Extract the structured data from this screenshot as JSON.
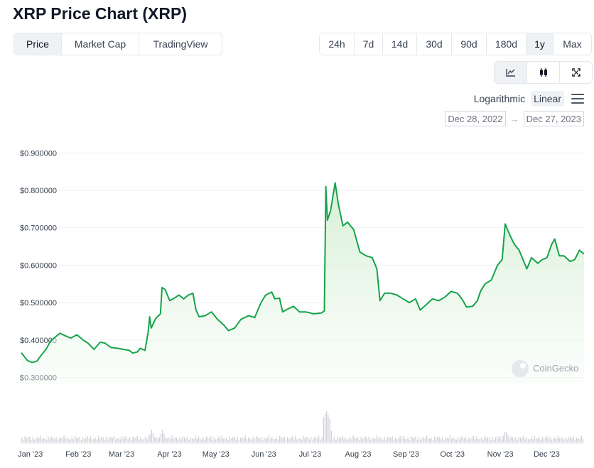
{
  "header": {
    "title": "XRP Price Chart (XRP)"
  },
  "view_tabs": [
    {
      "label": "Price",
      "active": true
    },
    {
      "label": "Market Cap",
      "active": false
    },
    {
      "label": "TradingView",
      "active": false
    }
  ],
  "range_tabs": [
    {
      "label": "24h",
      "active": false
    },
    {
      "label": "7d",
      "active": false
    },
    {
      "label": "14d",
      "active": false
    },
    {
      "label": "30d",
      "active": false
    },
    {
      "label": "90d",
      "active": false
    },
    {
      "label": "180d",
      "active": false
    },
    {
      "label": "1y",
      "active": true
    },
    {
      "label": "Max",
      "active": false
    }
  ],
  "chart_type_icons": [
    "line-chart-icon",
    "candlestick-icon",
    "fullscreen-icon"
  ],
  "scale": {
    "logarithmic": "Logarithmic",
    "linear": "Linear",
    "active": "linear"
  },
  "date_range": {
    "from": "Dec 28, 2022",
    "arrow": "→",
    "to": "Dec 27, 2023"
  },
  "watermark": "CoinGecko",
  "colors": {
    "line": "#16a34a",
    "fill_top": "#cdeccc",
    "volume": "#d1d5db",
    "active_tab": "#eff2f5"
  },
  "chart_data": {
    "type": "area",
    "title": "",
    "xlabel": "",
    "ylabel": "",
    "ylim": [
      0.28,
      0.91
    ],
    "yticks": [
      "$0.900000",
      "$0.800000",
      "$0.700000",
      "$0.600000",
      "$0.500000",
      "$0.400000",
      "$0.300000"
    ],
    "ytick_values": [
      0.9,
      0.8,
      0.7,
      0.6,
      0.5,
      0.4,
      0.3
    ],
    "xticks": [
      "Jan '23",
      "Feb '23",
      "Mar '23",
      "Apr '23",
      "May '23",
      "Jun '23",
      "Jul '23",
      "Aug '23",
      "Sep '23",
      "Oct '23",
      "Nov '23",
      "Dec '23"
    ],
    "xtick_dates": [
      "2023-01-01",
      "2023-02-01",
      "2023-03-01",
      "2023-04-01",
      "2023-05-01",
      "2023-06-01",
      "2023-07-01",
      "2023-08-01",
      "2023-09-01",
      "2023-10-01",
      "2023-11-01",
      "2023-12-01"
    ],
    "x_range": [
      "2022-12-28",
      "2023-12-27"
    ],
    "grid": "horizontal",
    "series": [
      {
        "points": [
          [
            "2022-12-28",
            0.366
          ],
          [
            "2023-01-01",
            0.345
          ],
          [
            "2023-01-04",
            0.34
          ],
          [
            "2023-01-07",
            0.343
          ],
          [
            "2023-01-10",
            0.36
          ],
          [
            "2023-01-13",
            0.375
          ],
          [
            "2023-01-16",
            0.398
          ],
          [
            "2023-01-19",
            0.408
          ],
          [
            "2023-01-22",
            0.418
          ],
          [
            "2023-01-25",
            0.412
          ],
          [
            "2023-01-29",
            0.405
          ],
          [
            "2023-02-02",
            0.414
          ],
          [
            "2023-02-06",
            0.4
          ],
          [
            "2023-02-09",
            0.392
          ],
          [
            "2023-02-13",
            0.375
          ],
          [
            "2023-02-17",
            0.394
          ],
          [
            "2023-02-20",
            0.392
          ],
          [
            "2023-02-24",
            0.38
          ],
          [
            "2023-02-28",
            0.378
          ],
          [
            "2023-03-04",
            0.375
          ],
          [
            "2023-03-08",
            0.372
          ],
          [
            "2023-03-10",
            0.365
          ],
          [
            "2023-03-13",
            0.368
          ],
          [
            "2023-03-15",
            0.378
          ],
          [
            "2023-03-18",
            0.372
          ],
          [
            "2023-03-20",
            0.42
          ],
          [
            "2023-03-21",
            0.462
          ],
          [
            "2023-03-22",
            0.432
          ],
          [
            "2023-03-25",
            0.458
          ],
          [
            "2023-03-28",
            0.47
          ],
          [
            "2023-03-29",
            0.54
          ],
          [
            "2023-03-31",
            0.535
          ],
          [
            "2023-04-03",
            0.505
          ],
          [
            "2023-04-06",
            0.512
          ],
          [
            "2023-04-09",
            0.52
          ],
          [
            "2023-04-12",
            0.51
          ],
          [
            "2023-04-15",
            0.52
          ],
          [
            "2023-04-18",
            0.525
          ],
          [
            "2023-04-20",
            0.48
          ],
          [
            "2023-04-22",
            0.462
          ],
          [
            "2023-04-26",
            0.465
          ],
          [
            "2023-04-30",
            0.475
          ],
          [
            "2023-05-04",
            0.455
          ],
          [
            "2023-05-08",
            0.44
          ],
          [
            "2023-05-11",
            0.425
          ],
          [
            "2023-05-15",
            0.432
          ],
          [
            "2023-05-19",
            0.455
          ],
          [
            "2023-05-24",
            0.465
          ],
          [
            "2023-05-28",
            0.46
          ],
          [
            "2023-06-01",
            0.5
          ],
          [
            "2023-06-04",
            0.52
          ],
          [
            "2023-06-08",
            0.528
          ],
          [
            "2023-06-10",
            0.51
          ],
          [
            "2023-06-13",
            0.512
          ],
          [
            "2023-06-15",
            0.475
          ],
          [
            "2023-06-18",
            0.482
          ],
          [
            "2023-06-22",
            0.49
          ],
          [
            "2023-06-26",
            0.475
          ],
          [
            "2023-06-30",
            0.475
          ],
          [
            "2023-07-05",
            0.47
          ],
          [
            "2023-07-10",
            0.472
          ],
          [
            "2023-07-12",
            0.478
          ],
          [
            "2023-07-13",
            0.81
          ],
          [
            "2023-07-14",
            0.72
          ],
          [
            "2023-07-16",
            0.745
          ],
          [
            "2023-07-18",
            0.795
          ],
          [
            "2023-07-19",
            0.82
          ],
          [
            "2023-07-21",
            0.765
          ],
          [
            "2023-07-24",
            0.705
          ],
          [
            "2023-07-27",
            0.715
          ],
          [
            "2023-07-31",
            0.695
          ],
          [
            "2023-08-04",
            0.635
          ],
          [
            "2023-08-08",
            0.625
          ],
          [
            "2023-08-12",
            0.62
          ],
          [
            "2023-08-15",
            0.59
          ],
          [
            "2023-08-17",
            0.505
          ],
          [
            "2023-08-20",
            0.525
          ],
          [
            "2023-08-24",
            0.525
          ],
          [
            "2023-08-28",
            0.52
          ],
          [
            "2023-09-01",
            0.51
          ],
          [
            "2023-09-05",
            0.5
          ],
          [
            "2023-09-09",
            0.51
          ],
          [
            "2023-09-12",
            0.48
          ],
          [
            "2023-09-16",
            0.495
          ],
          [
            "2023-09-20",
            0.51
          ],
          [
            "2023-09-24",
            0.505
          ],
          [
            "2023-09-28",
            0.515
          ],
          [
            "2023-10-02",
            0.53
          ],
          [
            "2023-10-06",
            0.525
          ],
          [
            "2023-10-09",
            0.51
          ],
          [
            "2023-10-12",
            0.488
          ],
          [
            "2023-10-16",
            0.49
          ],
          [
            "2023-10-19",
            0.505
          ],
          [
            "2023-10-21",
            0.53
          ],
          [
            "2023-10-24",
            0.55
          ],
          [
            "2023-10-28",
            0.56
          ],
          [
            "2023-11-01",
            0.6
          ],
          [
            "2023-11-04",
            0.615
          ],
          [
            "2023-11-06",
            0.71
          ],
          [
            "2023-11-09",
            0.68
          ],
          [
            "2023-11-12",
            0.655
          ],
          [
            "2023-11-15",
            0.64
          ],
          [
            "2023-11-18",
            0.61
          ],
          [
            "2023-11-20",
            0.59
          ],
          [
            "2023-11-23",
            0.62
          ],
          [
            "2023-11-27",
            0.605
          ],
          [
            "2023-11-30",
            0.615
          ],
          [
            "2023-12-03",
            0.62
          ],
          [
            "2023-12-06",
            0.655
          ],
          [
            "2023-12-08",
            0.67
          ],
          [
            "2023-12-11",
            0.625
          ],
          [
            "2023-12-14",
            0.625
          ],
          [
            "2023-12-18",
            0.61
          ],
          [
            "2023-12-21",
            0.615
          ],
          [
            "2023-12-24",
            0.64
          ],
          [
            "2023-12-27",
            0.63
          ]
        ]
      }
    ],
    "volume": {
      "spike_dates": [
        "2023-03-22",
        "2023-03-29",
        "2023-07-13",
        "2023-07-14",
        "2023-11-06"
      ]
    }
  }
}
